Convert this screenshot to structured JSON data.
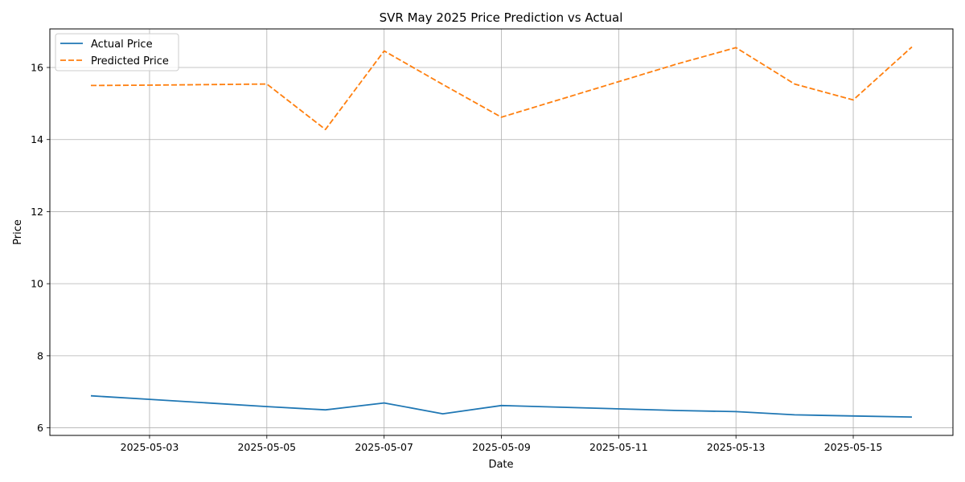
{
  "chart_data": {
    "type": "line",
    "title": "SVR May 2025 Price Prediction vs Actual",
    "xlabel": "Date",
    "ylabel": "Price",
    "x": [
      "2025-05-02",
      "2025-05-03",
      "2025-05-05",
      "2025-05-06",
      "2025-05-07",
      "2025-05-08",
      "2025-05-09",
      "2025-05-12",
      "2025-05-13",
      "2025-05-14",
      "2025-05-15",
      "2025-05-16"
    ],
    "series": [
      {
        "name": "Actual Price",
        "color": "#1f77b4",
        "style": "solid",
        "values": [
          6.89,
          6.79,
          6.59,
          6.5,
          6.69,
          6.39,
          6.62,
          6.48,
          6.45,
          6.36,
          6.33,
          6.3
        ]
      },
      {
        "name": "Predicted Price",
        "color": "#ff7f0e",
        "style": "dashed",
        "values": [
          15.5,
          15.51,
          15.54,
          14.28,
          16.46,
          15.53,
          14.62,
          16.1,
          16.55,
          15.54,
          15.1,
          16.57
        ]
      }
    ],
    "x_ticks": [
      "2025-05-03",
      "2025-05-05",
      "2025-05-07",
      "2025-05-09",
      "2025-05-11",
      "2025-05-13",
      "2025-05-15"
    ],
    "y_ticks": [
      6,
      8,
      10,
      12,
      14,
      16
    ],
    "xlim": [
      "2025-05-01 07:12",
      "2025-05-16 16:48"
    ],
    "ylim": [
      5.79,
      17.07
    ],
    "grid": true,
    "legend": "top-left"
  }
}
